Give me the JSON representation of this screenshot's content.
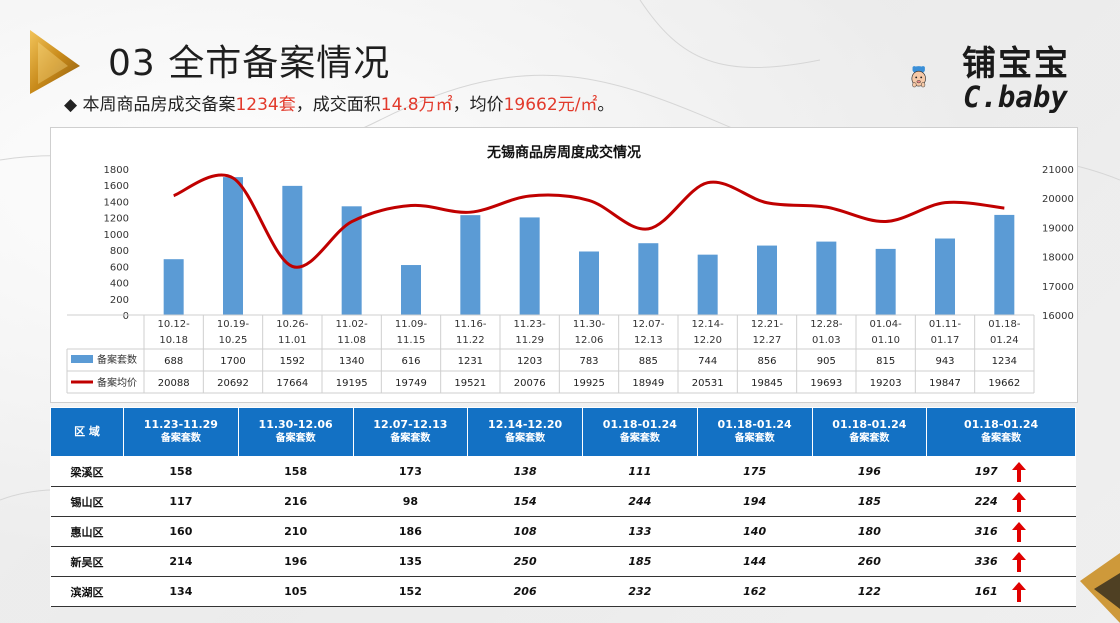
{
  "header": {
    "title": "03 全市备案情况",
    "summary_bullet": "◆",
    "summary_parts": [
      {
        "text": "本周商品房成交备案",
        "red": false
      },
      {
        "text": "1234套",
        "red": true
      },
      {
        "text": "，成交面积",
        "red": false
      },
      {
        "text": "14.8万㎡",
        "red": true
      },
      {
        "text": "，均价",
        "red": false
      },
      {
        "text": "19662元/㎡",
        "red": true
      },
      {
        "text": "。",
        "red": false
      }
    ]
  },
  "brand": {
    "cn": "铺宝宝",
    "en": "C.baby"
  },
  "colors": {
    "bar": "#5b9bd5",
    "line": "#c00000",
    "table_header": "#1371c4",
    "highlight": "#e23a2c",
    "arrow": "#e00000"
  },
  "chart_data": {
    "type": "bar",
    "title": "无锡商品房周度成交情况",
    "categories": [
      [
        "10.12-",
        "10.18"
      ],
      [
        "10.19-",
        "10.25"
      ],
      [
        "10.26-",
        "11.01"
      ],
      [
        "11.02-",
        "11.08"
      ],
      [
        "11.09-",
        "11.15"
      ],
      [
        "11.16-",
        "11.22"
      ],
      [
        "11.23-",
        "11.29"
      ],
      [
        "11.30-",
        "12.06"
      ],
      [
        "12.07-",
        "12.13"
      ],
      [
        "12.14-",
        "12.20"
      ],
      [
        "12.21-",
        "12.27"
      ],
      [
        "12.28-",
        "01.03"
      ],
      [
        "01.04-",
        "01.10"
      ],
      [
        "01.11-",
        "01.17"
      ],
      [
        "01.18-",
        "01.24"
      ]
    ],
    "series": [
      {
        "name": "备案套数",
        "type": "bar",
        "axis": "left",
        "values": [
          688,
          1700,
          1592,
          1340,
          616,
          1231,
          1203,
          783,
          885,
          744,
          856,
          905,
          815,
          943,
          1234
        ]
      },
      {
        "name": "备案均价",
        "type": "line",
        "axis": "right",
        "values": [
          20088,
          20692,
          17664,
          19195,
          19749,
          19521,
          20076,
          19925,
          18949,
          20531,
          19845,
          19693,
          19203,
          19847,
          19662
        ]
      }
    ],
    "ylim_left": [
      0,
      1800
    ],
    "yticks_left": [
      "0",
      "200",
      "400",
      "600",
      "800",
      "1000",
      "1200",
      "1400",
      "1600",
      "1800"
    ],
    "ylim_right": [
      16000,
      21000
    ],
    "yticks_right": [
      "16000",
      "17000",
      "18000",
      "19000",
      "20000",
      "21000"
    ],
    "data_table": true
  },
  "district_table": {
    "region_header": "区 域",
    "sub_label": "备案套数",
    "periods": [
      "11.23-11.29",
      "11.30-12.06",
      "12.07-12.13",
      "12.14-12.20",
      "01.18-01.24",
      "01.18-01.24",
      "01.18-01.24",
      "01.18-01.24"
    ],
    "rows": [
      {
        "region": "梁溪区",
        "values": [
          "158",
          "158",
          "173",
          "138",
          "111",
          "175",
          "196",
          "197"
        ]
      },
      {
        "region": "锡山区",
        "values": [
          "117",
          "216",
          "98",
          "154",
          "244",
          "194",
          "185",
          "224"
        ]
      },
      {
        "region": "惠山区",
        "values": [
          "160",
          "210",
          "186",
          "108",
          "133",
          "140",
          "180",
          "316"
        ]
      },
      {
        "region": "新吴区",
        "values": [
          "214",
          "196",
          "135",
          "250",
          "185",
          "144",
          "260",
          "336"
        ]
      },
      {
        "region": "滨湖区",
        "values": [
          "134",
          "105",
          "152",
          "206",
          "232",
          "162",
          "122",
          "161"
        ]
      }
    ],
    "arrow_icon": "arrow-up-icon"
  }
}
